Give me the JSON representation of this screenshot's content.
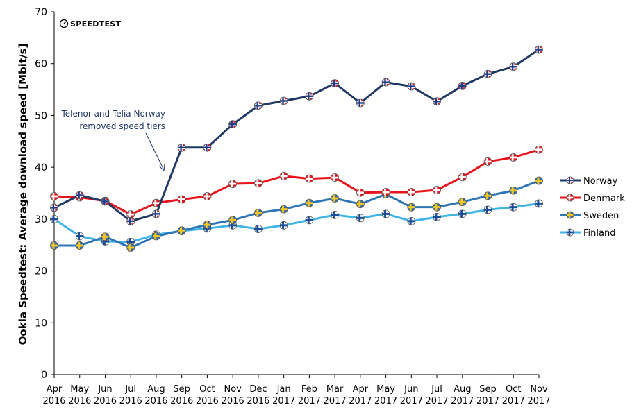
{
  "chart_data": {
    "type": "line",
    "ylabel": "Ookla Speedtest: Average download speed [Mbit/s]",
    "ylim": [
      0,
      70
    ],
    "yticks": [
      0,
      10,
      20,
      30,
      40,
      50,
      60,
      70
    ],
    "categories": [
      [
        "Apr",
        "2016"
      ],
      [
        "May",
        "2016"
      ],
      [
        "Jun",
        "2016"
      ],
      [
        "Jul",
        "2016"
      ],
      [
        "Aug",
        "2016"
      ],
      [
        "Sep",
        "2016"
      ],
      [
        "Oct",
        "2016"
      ],
      [
        "Nov",
        "2016"
      ],
      [
        "Dec",
        "2016"
      ],
      [
        "Jan",
        "2017"
      ],
      [
        "Feb",
        "2017"
      ],
      [
        "Mar",
        "2017"
      ],
      [
        "Apr",
        "2017"
      ],
      [
        "May",
        "2017"
      ],
      [
        "Jun",
        "2017"
      ],
      [
        "Jul",
        "2017"
      ],
      [
        "Aug",
        "2017"
      ],
      [
        "Sep",
        "2017"
      ],
      [
        "Oct",
        "2017"
      ],
      [
        "Nov",
        "2017"
      ]
    ],
    "series": [
      {
        "name": "Norway",
        "color": "#1f3864",
        "marker": "norway-flag-icon",
        "values": [
          32.2,
          34.6,
          33.4,
          29.6,
          31.0,
          43.8,
          43.8,
          48.3,
          51.9,
          52.8,
          53.7,
          56.2,
          52.4,
          56.4,
          55.6,
          52.7,
          55.7,
          58.0,
          59.4,
          62.7
        ]
      },
      {
        "name": "Denmark",
        "color": "#e8141b",
        "marker": "denmark-flag-icon",
        "values": [
          34.4,
          34.2,
          33.5,
          30.9,
          33.1,
          33.8,
          34.4,
          36.8,
          36.9,
          38.3,
          37.8,
          38.0,
          35.1,
          35.2,
          35.2,
          35.6,
          38.1,
          41.1,
          41.9,
          43.4
        ]
      },
      {
        "name": "Sweden",
        "color": "#2e75b6",
        "marker": "sweden-flag-icon",
        "values": [
          24.9,
          24.9,
          26.6,
          24.5,
          26.7,
          27.8,
          28.9,
          29.8,
          31.2,
          31.9,
          33.1,
          34.0,
          32.9,
          34.8,
          32.3,
          32.3,
          33.3,
          34.5,
          35.5,
          37.4
        ]
      },
      {
        "name": "Finland",
        "color": "#41b4e6",
        "marker": "finland-flag-icon",
        "values": [
          30.0,
          26.7,
          25.7,
          25.6,
          27.0,
          27.7,
          28.2,
          28.8,
          28.1,
          28.8,
          29.8,
          30.8,
          30.2,
          31.0,
          29.6,
          30.4,
          31.0,
          31.8,
          32.3,
          33.0
        ]
      }
    ],
    "legend_position": "right",
    "grid": false,
    "annotation": {
      "lines": [
        "Telenor and Telia  Norway",
        "removed speed tiers"
      ]
    },
    "logo_text": "SPEEDTEST"
  }
}
